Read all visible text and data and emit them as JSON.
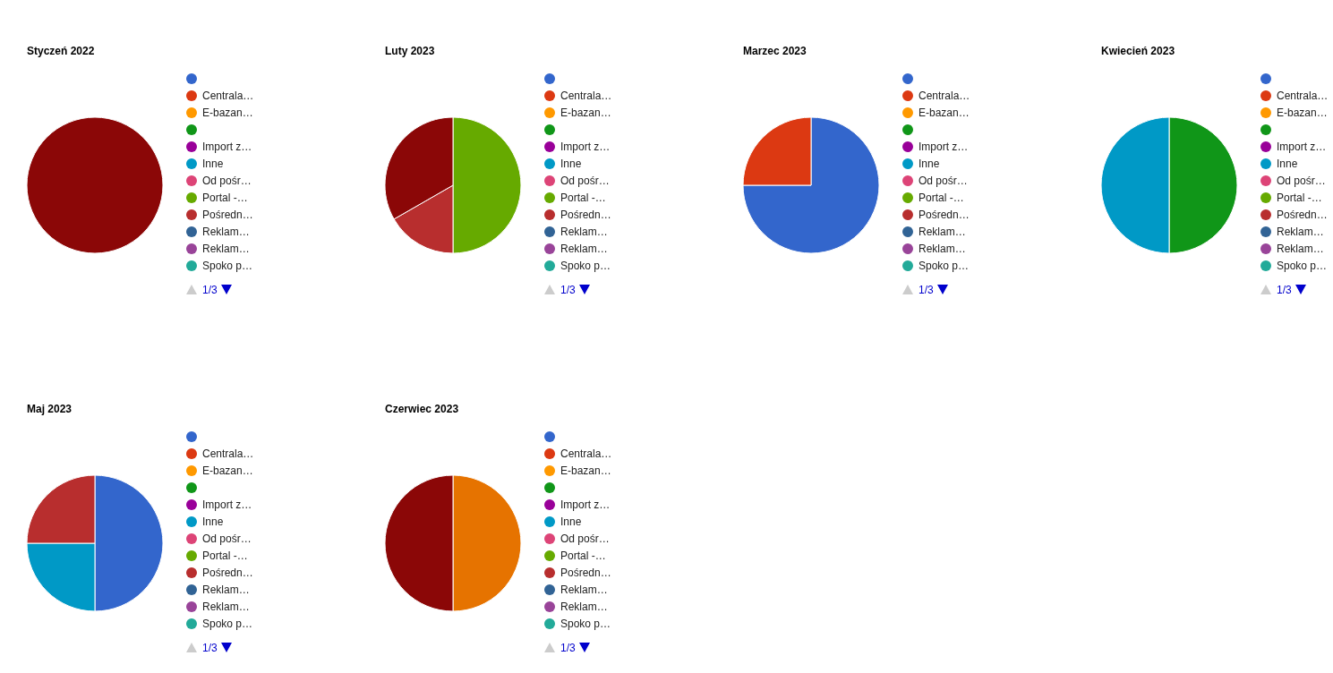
{
  "chart_data": [
    {
      "type": "pie",
      "title": "Styczeń 2022",
      "legend": "right",
      "annotations": [
        "1/3"
      ],
      "categories": [
        null,
        "Centrala…",
        "E-bazan…",
        null,
        "Import z…",
        "Inne",
        "Od pośr…",
        "Portal -…",
        "Pośredn…",
        "Reklam…",
        "Reklam…",
        "Spoko p…",
        null,
        null
      ],
      "values": [
        0,
        0,
        0,
        0,
        0,
        0,
        0,
        0,
        0,
        0,
        0,
        0,
        0,
        100
      ],
      "colors": [
        "#3366cc",
        "#dc3912",
        "#ff9900",
        "#109618",
        "#990099",
        "#0099c6",
        "#dd4477",
        "#66aa00",
        "#b82e2e",
        "#316395",
        "#994499",
        "#22aa99",
        "#e67300",
        "#8b0707"
      ]
    },
    {
      "type": "pie",
      "title": "Luty 2023",
      "legend": "right",
      "annotations": [
        "1/3"
      ],
      "categories": [
        null,
        "Centrala…",
        "E-bazan…",
        null,
        "Import z…",
        "Inne",
        "Od pośr…",
        "Portal -…",
        "Pośredn…",
        "Reklam…",
        "Reklam…",
        "Spoko p…",
        null,
        null
      ],
      "values": [
        0,
        0,
        0,
        0,
        0,
        0,
        0,
        50,
        16.7,
        0,
        0,
        0,
        0,
        33.3
      ],
      "colors": [
        "#3366cc",
        "#dc3912",
        "#ff9900",
        "#109618",
        "#990099",
        "#0099c6",
        "#dd4477",
        "#66aa00",
        "#b82e2e",
        "#316395",
        "#994499",
        "#22aa99",
        "#e67300",
        "#8b0707"
      ]
    },
    {
      "type": "pie",
      "title": "Marzec 2023",
      "legend": "right",
      "annotations": [
        "1/3"
      ],
      "categories": [
        null,
        "Centrala…",
        "E-bazan…",
        null,
        "Import z…",
        "Inne",
        "Od pośr…",
        "Portal -…",
        "Pośredn…",
        "Reklam…",
        "Reklam…",
        "Spoko p…",
        null,
        null
      ],
      "values": [
        75,
        25,
        0,
        0,
        0,
        0,
        0,
        0,
        0,
        0,
        0,
        0,
        0,
        0
      ],
      "colors": [
        "#3366cc",
        "#dc3912",
        "#ff9900",
        "#109618",
        "#990099",
        "#0099c6",
        "#dd4477",
        "#66aa00",
        "#b82e2e",
        "#316395",
        "#994499",
        "#22aa99",
        "#e67300",
        "#8b0707"
      ]
    },
    {
      "type": "pie",
      "title": "Kwiecień 2023",
      "legend": "right",
      "annotations": [
        "1/3"
      ],
      "categories": [
        null,
        "Centrala…",
        "E-bazan…",
        null,
        "Import z…",
        "Inne",
        "Od pośr…",
        "Portal -…",
        "Pośredn…",
        "Reklam…",
        "Reklam…",
        "Spoko p…",
        null,
        null
      ],
      "values": [
        0,
        0,
        0,
        50,
        0,
        50,
        0,
        0,
        0,
        0,
        0,
        0,
        0,
        0
      ],
      "colors": [
        "#3366cc",
        "#dc3912",
        "#ff9900",
        "#109618",
        "#990099",
        "#0099c6",
        "#dd4477",
        "#66aa00",
        "#b82e2e",
        "#316395",
        "#994499",
        "#22aa99",
        "#e67300",
        "#8b0707"
      ]
    },
    {
      "type": "pie",
      "title": "Maj 2023",
      "legend": "right",
      "annotations": [
        "1/3"
      ],
      "categories": [
        null,
        "Centrala…",
        "E-bazan…",
        null,
        "Import z…",
        "Inne",
        "Od pośr…",
        "Portal -…",
        "Pośredn…",
        "Reklam…",
        "Reklam…",
        "Spoko p…",
        null,
        null
      ],
      "values": [
        50,
        0,
        0,
        0,
        0,
        25,
        0,
        0,
        25,
        0,
        0,
        0,
        0,
        0
      ],
      "colors": [
        "#3366cc",
        "#dc3912",
        "#ff9900",
        "#109618",
        "#990099",
        "#0099c6",
        "#dd4477",
        "#66aa00",
        "#b82e2e",
        "#316395",
        "#994499",
        "#22aa99",
        "#e67300",
        "#8b0707"
      ]
    },
    {
      "type": "pie",
      "title": "Czerwiec 2023",
      "legend": "right",
      "annotations": [
        "1/3"
      ],
      "categories": [
        null,
        "Centrala…",
        "E-bazan…",
        null,
        "Import z…",
        "Inne",
        "Od pośr…",
        "Portal -…",
        "Pośredn…",
        "Reklam…",
        "Reklam…",
        "Spoko p…",
        null,
        null
      ],
      "values": [
        0,
        0,
        0,
        0,
        0,
        0,
        0,
        0,
        0,
        0,
        0,
        0,
        50,
        50
      ],
      "colors": [
        "#3366cc",
        "#dc3912",
        "#ff9900",
        "#109618",
        "#990099",
        "#0099c6",
        "#dd4477",
        "#66aa00",
        "#b82e2e",
        "#316395",
        "#994499",
        "#22aa99",
        "#e67300",
        "#8b0707"
      ]
    }
  ]
}
